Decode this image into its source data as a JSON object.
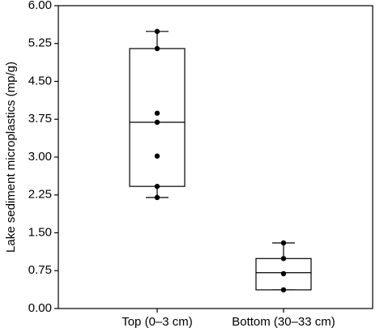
{
  "chart_data": {
    "type": "box",
    "y_label": "Lake sediment microplastics (mp/g)",
    "categories": [
      "Top (0–3 cm)",
      "Bottom (30–33 cm)"
    ],
    "boxes": [
      {
        "low": 2.2,
        "q1": 2.42,
        "median": 3.69,
        "q3": 5.15,
        "high": 5.49,
        "points": [
          5.49,
          5.15,
          3.87,
          3.69,
          3.02,
          2.42,
          2.2
        ]
      },
      {
        "low": 0.37,
        "q1": 0.37,
        "median": 0.71,
        "q3": 0.99,
        "high": 1.3,
        "points": [
          1.3,
          0.99,
          0.69,
          0.37
        ]
      }
    ],
    "color": "#000000",
    "ylim": [
      0,
      6
    ],
    "yticks": [
      {
        "value": 0,
        "label": "0.00"
      },
      {
        "value": 0.75,
        "label": "0.75"
      },
      {
        "value": 1.5,
        "label": "1.50"
      },
      {
        "value": 2.25,
        "label": "2.25"
      },
      {
        "value": 3,
        "label": "3.00"
      },
      {
        "value": 3.75,
        "label": "3.75"
      },
      {
        "value": 4.5,
        "label": "4.50"
      },
      {
        "value": 5.25,
        "label": "5.25"
      },
      {
        "value": 6,
        "label": "6.00"
      }
    ]
  }
}
